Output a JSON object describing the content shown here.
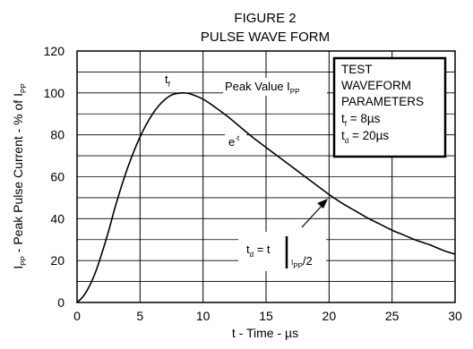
{
  "chart_data": {
    "type": "line",
    "title": "FIGURE 2",
    "subtitle": "PULSE WAVE FORM",
    "xlabel": "t - Time - µs",
    "ylabel": {
      "main": "I",
      "sub1": "PP",
      "text": " - Peak Pulse Current - % of I",
      "sub2": "PP"
    },
    "xlim": [
      0,
      30
    ],
    "ylim": [
      0,
      120
    ],
    "x_ticks": [
      "0",
      "5",
      "10",
      "15",
      "20",
      "25",
      "30"
    ],
    "y_ticks": [
      "0",
      "20",
      "40",
      "60",
      "80",
      "100",
      "120"
    ],
    "grid": true,
    "series": [
      {
        "x": [
          0,
          0.5,
          1,
          1.5,
          2,
          2.5,
          3,
          3.5,
          4,
          4.5,
          5,
          5.5,
          6,
          6.5,
          7,
          7.5,
          8,
          8.5,
          9,
          10,
          11,
          12,
          13,
          14,
          15,
          16,
          17,
          18,
          19,
          20,
          21,
          22,
          23,
          24,
          25,
          26,
          27,
          28,
          29,
          30
        ],
        "y": [
          0,
          3,
          8,
          15,
          24,
          34,
          45,
          55,
          64,
          72,
          79,
          85,
          90,
          94,
          97,
          99,
          99.8,
          100,
          99.5,
          97,
          93,
          88.5,
          83.5,
          78.5,
          74,
          69.5,
          65,
          60.5,
          56,
          51.5,
          47.5,
          44,
          40.5,
          37.5,
          34.5,
          32,
          29.5,
          27.5,
          25,
          23
        ]
      }
    ],
    "annotations": {
      "tf": {
        "main": "t",
        "sub": "f"
      },
      "peak": {
        "text": "Peak Value I",
        "sub": "PP"
      },
      "decay": {
        "main": "e",
        "sup": "-t"
      },
      "td": {
        "t": "t",
        "tsub": "d",
        "eq": " = t",
        "isub": "I",
        "ppsub": "PP",
        "half": "/2"
      }
    },
    "legend_box": {
      "line1": "TEST",
      "line2": "WAVEFORM",
      "line3": "PARAMETERS",
      "tf_main": "t",
      "tf_sub": "f",
      "tf_val": " = 8µs",
      "td_main": "t",
      "td_sub": "d",
      "td_val": " = 20µs"
    }
  }
}
